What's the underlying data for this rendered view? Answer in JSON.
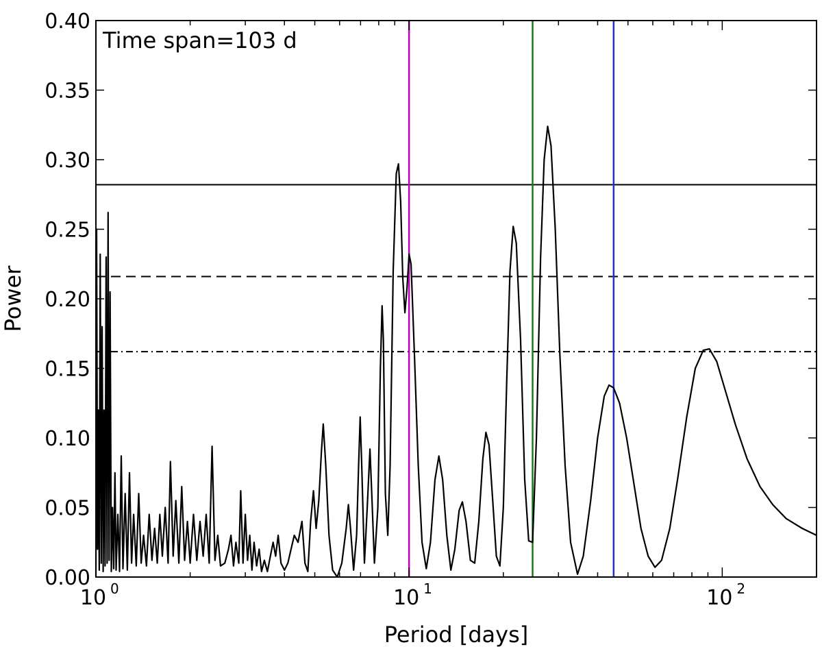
{
  "chart_data": {
    "type": "line",
    "xlabel": "Period [days]",
    "ylabel": "Power",
    "xscale": "log",
    "xlim": [
      1,
      200
    ],
    "ylim": [
      0,
      0.4
    ],
    "grid": false,
    "annotation": "Time span=103 d",
    "x_ticks": [
      {
        "value": 1,
        "base": "10",
        "exp": "0"
      },
      {
        "value": 10,
        "base": "10",
        "exp": "1"
      },
      {
        "value": 100,
        "base": "10",
        "exp": "2"
      }
    ],
    "y_ticks": [
      "0.00",
      "0.05",
      "0.10",
      "0.15",
      "0.20",
      "0.25",
      "0.30",
      "0.35",
      "0.40"
    ],
    "hlines": [
      {
        "y": 0.282,
        "style": "solid"
      },
      {
        "y": 0.216,
        "style": "dashed"
      },
      {
        "y": 0.162,
        "style": "dashdot"
      }
    ],
    "vlines": [
      {
        "x": 10.0,
        "color": "#c000c0"
      },
      {
        "x": 24.8,
        "color": "#1a7a1a"
      },
      {
        "x": 45.0,
        "color": "#1f2fd6"
      }
    ],
    "series": [
      {
        "color": "#000000",
        "points": [
          [
            1.0,
            0.0
          ],
          [
            1.005,
            0.25
          ],
          [
            1.012,
            0.02
          ],
          [
            1.018,
            0.12
          ],
          [
            1.025,
            0.005
          ],
          [
            1.032,
            0.232
          ],
          [
            1.04,
            0.01
          ],
          [
            1.047,
            0.18
          ],
          [
            1.055,
            0.004
          ],
          [
            1.062,
            0.12
          ],
          [
            1.07,
            0.008
          ],
          [
            1.078,
            0.23
          ],
          [
            1.086,
            0.01
          ],
          [
            1.094,
            0.262
          ],
          [
            1.102,
            0.012
          ],
          [
            1.11,
            0.205
          ],
          [
            1.12,
            0.004
          ],
          [
            1.13,
            0.05
          ],
          [
            1.14,
            0.006
          ],
          [
            1.15,
            0.075
          ],
          [
            1.16,
            0.005
          ],
          [
            1.175,
            0.045
          ],
          [
            1.19,
            0.004
          ],
          [
            1.205,
            0.087
          ],
          [
            1.22,
            0.006
          ],
          [
            1.24,
            0.06
          ],
          [
            1.26,
            0.005
          ],
          [
            1.28,
            0.075
          ],
          [
            1.3,
            0.01
          ],
          [
            1.32,
            0.045
          ],
          [
            1.345,
            0.008
          ],
          [
            1.37,
            0.06
          ],
          [
            1.395,
            0.01
          ],
          [
            1.42,
            0.03
          ],
          [
            1.45,
            0.008
          ],
          [
            1.48,
            0.045
          ],
          [
            1.51,
            0.012
          ],
          [
            1.54,
            0.035
          ],
          [
            1.57,
            0.01
          ],
          [
            1.6,
            0.045
          ],
          [
            1.63,
            0.015
          ],
          [
            1.665,
            0.05
          ],
          [
            1.7,
            0.01
          ],
          [
            1.73,
            0.083
          ],
          [
            1.765,
            0.015
          ],
          [
            1.8,
            0.055
          ],
          [
            1.84,
            0.01
          ],
          [
            1.88,
            0.065
          ],
          [
            1.92,
            0.012
          ],
          [
            1.96,
            0.04
          ],
          [
            2.0,
            0.01
          ],
          [
            2.05,
            0.045
          ],
          [
            2.1,
            0.012
          ],
          [
            2.15,
            0.04
          ],
          [
            2.2,
            0.015
          ],
          [
            2.25,
            0.045
          ],
          [
            2.3,
            0.01
          ],
          [
            2.35,
            0.094
          ],
          [
            2.4,
            0.012
          ],
          [
            2.45,
            0.03
          ],
          [
            2.5,
            0.008
          ],
          [
            2.58,
            0.01
          ],
          [
            2.65,
            0.02
          ],
          [
            2.7,
            0.03
          ],
          [
            2.75,
            0.008
          ],
          [
            2.8,
            0.025
          ],
          [
            2.86,
            0.01
          ],
          [
            2.9,
            0.062
          ],
          [
            2.95,
            0.01
          ],
          [
            3.0,
            0.045
          ],
          [
            3.05,
            0.012
          ],
          [
            3.1,
            0.03
          ],
          [
            3.15,
            0.005
          ],
          [
            3.2,
            0.025
          ],
          [
            3.26,
            0.008
          ],
          [
            3.32,
            0.02
          ],
          [
            3.38,
            0.004
          ],
          [
            3.45,
            0.012
          ],
          [
            3.53,
            0.004
          ],
          [
            3.6,
            0.014
          ],
          [
            3.68,
            0.025
          ],
          [
            3.75,
            0.015
          ],
          [
            3.82,
            0.03
          ],
          [
            3.9,
            0.01
          ],
          [
            4.0,
            0.005
          ],
          [
            4.1,
            0.01
          ],
          [
            4.2,
            0.02
          ],
          [
            4.3,
            0.03
          ],
          [
            4.42,
            0.025
          ],
          [
            4.55,
            0.04
          ],
          [
            4.65,
            0.01
          ],
          [
            4.75,
            0.004
          ],
          [
            4.85,
            0.04
          ],
          [
            4.95,
            0.062
          ],
          [
            5.05,
            0.035
          ],
          [
            5.15,
            0.055
          ],
          [
            5.25,
            0.09
          ],
          [
            5.32,
            0.11
          ],
          [
            5.42,
            0.08
          ],
          [
            5.55,
            0.03
          ],
          [
            5.7,
            0.005
          ],
          [
            5.9,
            0.0
          ],
          [
            6.1,
            0.01
          ],
          [
            6.3,
            0.035
          ],
          [
            6.4,
            0.052
          ],
          [
            6.5,
            0.035
          ],
          [
            6.65,
            0.005
          ],
          [
            6.8,
            0.03
          ],
          [
            6.9,
            0.08
          ],
          [
            6.98,
            0.115
          ],
          [
            7.06,
            0.08
          ],
          [
            7.2,
            0.01
          ],
          [
            7.35,
            0.05
          ],
          [
            7.5,
            0.092
          ],
          [
            7.6,
            0.06
          ],
          [
            7.75,
            0.01
          ],
          [
            7.95,
            0.05
          ],
          [
            8.1,
            0.15
          ],
          [
            8.2,
            0.195
          ],
          [
            8.28,
            0.17
          ],
          [
            8.4,
            0.06
          ],
          [
            8.55,
            0.03
          ],
          [
            8.7,
            0.08
          ],
          [
            8.9,
            0.22
          ],
          [
            9.1,
            0.29
          ],
          [
            9.25,
            0.297
          ],
          [
            9.4,
            0.27
          ],
          [
            9.55,
            0.215
          ],
          [
            9.7,
            0.19
          ],
          [
            9.85,
            0.208
          ],
          [
            10.0,
            0.232
          ],
          [
            10.15,
            0.225
          ],
          [
            10.4,
            0.16
          ],
          [
            10.7,
            0.08
          ],
          [
            11.0,
            0.025
          ],
          [
            11.35,
            0.006
          ],
          [
            11.7,
            0.025
          ],
          [
            12.1,
            0.07
          ],
          [
            12.45,
            0.087
          ],
          [
            12.8,
            0.07
          ],
          [
            13.2,
            0.03
          ],
          [
            13.6,
            0.005
          ],
          [
            14.0,
            0.02
          ],
          [
            14.45,
            0.048
          ],
          [
            14.8,
            0.054
          ],
          [
            15.2,
            0.04
          ],
          [
            15.7,
            0.012
          ],
          [
            16.2,
            0.01
          ],
          [
            16.7,
            0.04
          ],
          [
            17.2,
            0.085
          ],
          [
            17.6,
            0.104
          ],
          [
            18.0,
            0.095
          ],
          [
            18.5,
            0.055
          ],
          [
            19.0,
            0.015
          ],
          [
            19.5,
            0.008
          ],
          [
            20.0,
            0.05
          ],
          [
            20.5,
            0.14
          ],
          [
            21.0,
            0.22
          ],
          [
            21.5,
            0.252
          ],
          [
            22.0,
            0.24
          ],
          [
            22.7,
            0.17
          ],
          [
            23.4,
            0.07
          ],
          [
            24.1,
            0.026
          ],
          [
            24.8,
            0.025
          ],
          [
            25.5,
            0.1
          ],
          [
            26.3,
            0.23
          ],
          [
            27.0,
            0.3
          ],
          [
            27.7,
            0.324
          ],
          [
            28.4,
            0.31
          ],
          [
            29.3,
            0.25
          ],
          [
            30.3,
            0.16
          ],
          [
            31.5,
            0.08
          ],
          [
            32.8,
            0.025
          ],
          [
            34.5,
            0.002
          ],
          [
            36.0,
            0.015
          ],
          [
            38.0,
            0.055
          ],
          [
            40.0,
            0.1
          ],
          [
            42.0,
            0.13
          ],
          [
            43.5,
            0.138
          ],
          [
            45.0,
            0.136
          ],
          [
            47.0,
            0.125
          ],
          [
            49.5,
            0.1
          ],
          [
            52.0,
            0.07
          ],
          [
            55.0,
            0.035
          ],
          [
            58.0,
            0.015
          ],
          [
            61.0,
            0.007
          ],
          [
            64.0,
            0.012
          ],
          [
            68.0,
            0.035
          ],
          [
            72.0,
            0.07
          ],
          [
            77.0,
            0.115
          ],
          [
            82.0,
            0.15
          ],
          [
            87.0,
            0.163
          ],
          [
            91.0,
            0.164
          ],
          [
            96.0,
            0.155
          ],
          [
            102.0,
            0.135
          ],
          [
            110.0,
            0.11
          ],
          [
            120.0,
            0.085
          ],
          [
            132.0,
            0.065
          ],
          [
            145.0,
            0.052
          ],
          [
            160.0,
            0.042
          ],
          [
            180.0,
            0.035
          ],
          [
            200.0,
            0.03
          ]
        ]
      }
    ]
  }
}
